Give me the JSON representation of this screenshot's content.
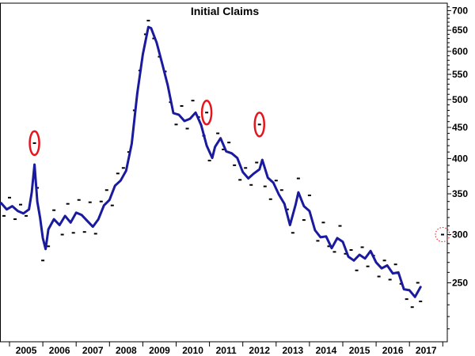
{
  "chart_data": {
    "type": "line",
    "title": "Initial Claims",
    "xlabel": "",
    "ylabel": "",
    "y_scale": "log",
    "ylim": [
      200,
      720
    ],
    "grid": false,
    "y_axis_position": "right",
    "x_tick_labels": [
      "2005",
      "2006",
      "2007",
      "2008",
      "2009",
      "2010",
      "2011",
      "2012",
      "2013",
      "2014",
      "2015",
      "2016",
      "2017"
    ],
    "y_tick_labels": [
      "250",
      "300",
      "350",
      "400",
      "450",
      "500",
      "550",
      "600",
      "650",
      "700"
    ],
    "line_color": "#1a1a9e",
    "dot_color": "#000000",
    "highlight_color": "#e8141c",
    "series": [
      {
        "kind": "moving-average-line",
        "points": [
          [
            "2004-08",
            332
          ],
          [
            "2004-10",
            338
          ],
          [
            "2004-12",
            330
          ],
          [
            "2005-02",
            334
          ],
          [
            "2005-04",
            328
          ],
          [
            "2005-06",
            325
          ],
          [
            "2005-08",
            330
          ],
          [
            "2005-09",
            352
          ],
          [
            "2005-10",
            391
          ],
          [
            "2005-11",
            340
          ],
          [
            "2005-12",
            320
          ],
          [
            "2006-01",
            296
          ],
          [
            "2006-02",
            284
          ],
          [
            "2006-03",
            306
          ],
          [
            "2006-05",
            318
          ],
          [
            "2006-07",
            311
          ],
          [
            "2006-09",
            322
          ],
          [
            "2006-11",
            314
          ],
          [
            "2007-01",
            326
          ],
          [
            "2007-03",
            323
          ],
          [
            "2007-05",
            316
          ],
          [
            "2007-07",
            309
          ],
          [
            "2007-09",
            318
          ],
          [
            "2007-11",
            335
          ],
          [
            "2008-01",
            342
          ],
          [
            "2008-03",
            361
          ],
          [
            "2008-05",
            368
          ],
          [
            "2008-07",
            382
          ],
          [
            "2008-09",
            423
          ],
          [
            "2008-11",
            512
          ],
          [
            "2009-01",
            593
          ],
          [
            "2009-03",
            658
          ],
          [
            "2009-04",
            655
          ],
          [
            "2009-06",
            620
          ],
          [
            "2009-08",
            572
          ],
          [
            "2009-10",
            527
          ],
          [
            "2009-12",
            475
          ],
          [
            "2010-02",
            472
          ],
          [
            "2010-04",
            461
          ],
          [
            "2010-06",
            465
          ],
          [
            "2010-08",
            476
          ],
          [
            "2010-10",
            454
          ],
          [
            "2010-12",
            420
          ],
          [
            "2011-02",
            401
          ],
          [
            "2011-03",
            418
          ],
          [
            "2011-05",
            432
          ],
          [
            "2011-07",
            411
          ],
          [
            "2011-09",
            408
          ],
          [
            "2011-11",
            401
          ],
          [
            "2012-01",
            380
          ],
          [
            "2012-03",
            371
          ],
          [
            "2012-05",
            378
          ],
          [
            "2012-07",
            384
          ],
          [
            "2012-08",
            398
          ],
          [
            "2012-10",
            372
          ],
          [
            "2012-12",
            365
          ],
          [
            "2013-02",
            349
          ],
          [
            "2013-04",
            337
          ],
          [
            "2013-06",
            311
          ],
          [
            "2013-08",
            336
          ],
          [
            "2013-09",
            352
          ],
          [
            "2013-11",
            334
          ],
          [
            "2014-01",
            328
          ],
          [
            "2014-03",
            305
          ],
          [
            "2014-05",
            297
          ],
          [
            "2014-07",
            298
          ],
          [
            "2014-09",
            285
          ],
          [
            "2014-11",
            296
          ],
          [
            "2015-01",
            292
          ],
          [
            "2015-03",
            276
          ],
          [
            "2015-05",
            272
          ],
          [
            "2015-07",
            278
          ],
          [
            "2015-09",
            274
          ],
          [
            "2015-11",
            282
          ],
          [
            "2016-01",
            270
          ],
          [
            "2016-03",
            264
          ],
          [
            "2016-05",
            267
          ],
          [
            "2016-07",
            259
          ],
          [
            "2016-09",
            260
          ],
          [
            "2016-11",
            244
          ],
          [
            "2017-01",
            243
          ],
          [
            "2017-03",
            237
          ],
          [
            "2017-05",
            246
          ]
        ]
      },
      {
        "kind": "weekly-points",
        "points": [
          [
            "2004-07",
            350
          ],
          [
            "2004-09",
            341
          ],
          [
            "2004-11",
            322
          ],
          [
            "2005-01",
            345
          ],
          [
            "2005-03",
            318
          ],
          [
            "2005-05",
            336
          ],
          [
            "2005-07",
            322
          ],
          [
            "2005-10",
            424
          ],
          [
            "2005-11",
            358
          ],
          [
            "2006-01",
            272
          ],
          [
            "2006-03",
            287
          ],
          [
            "2006-05",
            329
          ],
          [
            "2006-08",
            300
          ],
          [
            "2006-10",
            337
          ],
          [
            "2006-12",
            302
          ],
          [
            "2007-02",
            342
          ],
          [
            "2007-04",
            303
          ],
          [
            "2007-06",
            339
          ],
          [
            "2007-08",
            301
          ],
          [
            "2007-10",
            340
          ],
          [
            "2007-12",
            355
          ],
          [
            "2008-02",
            335
          ],
          [
            "2008-04",
            378
          ],
          [
            "2008-06",
            386
          ],
          [
            "2008-08",
            410
          ],
          [
            "2008-10",
            480
          ],
          [
            "2008-12",
            558
          ],
          [
            "2009-02",
            640
          ],
          [
            "2009-03",
            674
          ],
          [
            "2009-05",
            630
          ],
          [
            "2009-07",
            588
          ],
          [
            "2009-09",
            556
          ],
          [
            "2009-11",
            495
          ],
          [
            "2010-01",
            455
          ],
          [
            "2010-03",
            488
          ],
          [
            "2010-05",
            448
          ],
          [
            "2010-07",
            498
          ],
          [
            "2010-09",
            468
          ],
          [
            "2010-11",
            436
          ],
          [
            "2010-12",
            476
          ],
          [
            "2011-01",
            397
          ],
          [
            "2011-04",
            440
          ],
          [
            "2011-06",
            414
          ],
          [
            "2011-08",
            425
          ],
          [
            "2011-10",
            390
          ],
          [
            "2011-12",
            369
          ],
          [
            "2012-02",
            386
          ],
          [
            "2012-04",
            362
          ],
          [
            "2012-06",
            394
          ],
          [
            "2012-07",
            455
          ],
          [
            "2012-09",
            360
          ],
          [
            "2012-11",
            343
          ],
          [
            "2013-01",
            368
          ],
          [
            "2013-03",
            355
          ],
          [
            "2013-05",
            330
          ],
          [
            "2013-07",
            302
          ],
          [
            "2013-09",
            371
          ],
          [
            "2013-11",
            317
          ],
          [
            "2014-01",
            348
          ],
          [
            "2014-04",
            293
          ],
          [
            "2014-06",
            314
          ],
          [
            "2014-08",
            287
          ],
          [
            "2014-10",
            281
          ],
          [
            "2014-12",
            310
          ],
          [
            "2015-02",
            279
          ],
          [
            "2015-04",
            283
          ],
          [
            "2015-06",
            262
          ],
          [
            "2015-08",
            286
          ],
          [
            "2015-10",
            266
          ],
          [
            "2015-12",
            277
          ],
          [
            "2016-02",
            256
          ],
          [
            "2016-04",
            272
          ],
          [
            "2016-06",
            253
          ],
          [
            "2016-08",
            268
          ],
          [
            "2016-10",
            249
          ],
          [
            "2016-12",
            235
          ],
          [
            "2017-02",
            228
          ],
          [
            "2017-04",
            250
          ],
          [
            "2017-05",
            233
          ]
        ]
      }
    ],
    "annotations": [
      {
        "shape": "circle",
        "style": "solid",
        "at": [
          "2005-10",
          424
        ]
      },
      {
        "shape": "circle",
        "style": "solid",
        "at": [
          "2010-12",
          476
        ]
      },
      {
        "shape": "circle",
        "style": "solid",
        "at": [
          "2012-07",
          455
        ]
      },
      {
        "shape": "circle",
        "style": "dotted",
        "on": "right-axis",
        "value": 300
      }
    ]
  }
}
